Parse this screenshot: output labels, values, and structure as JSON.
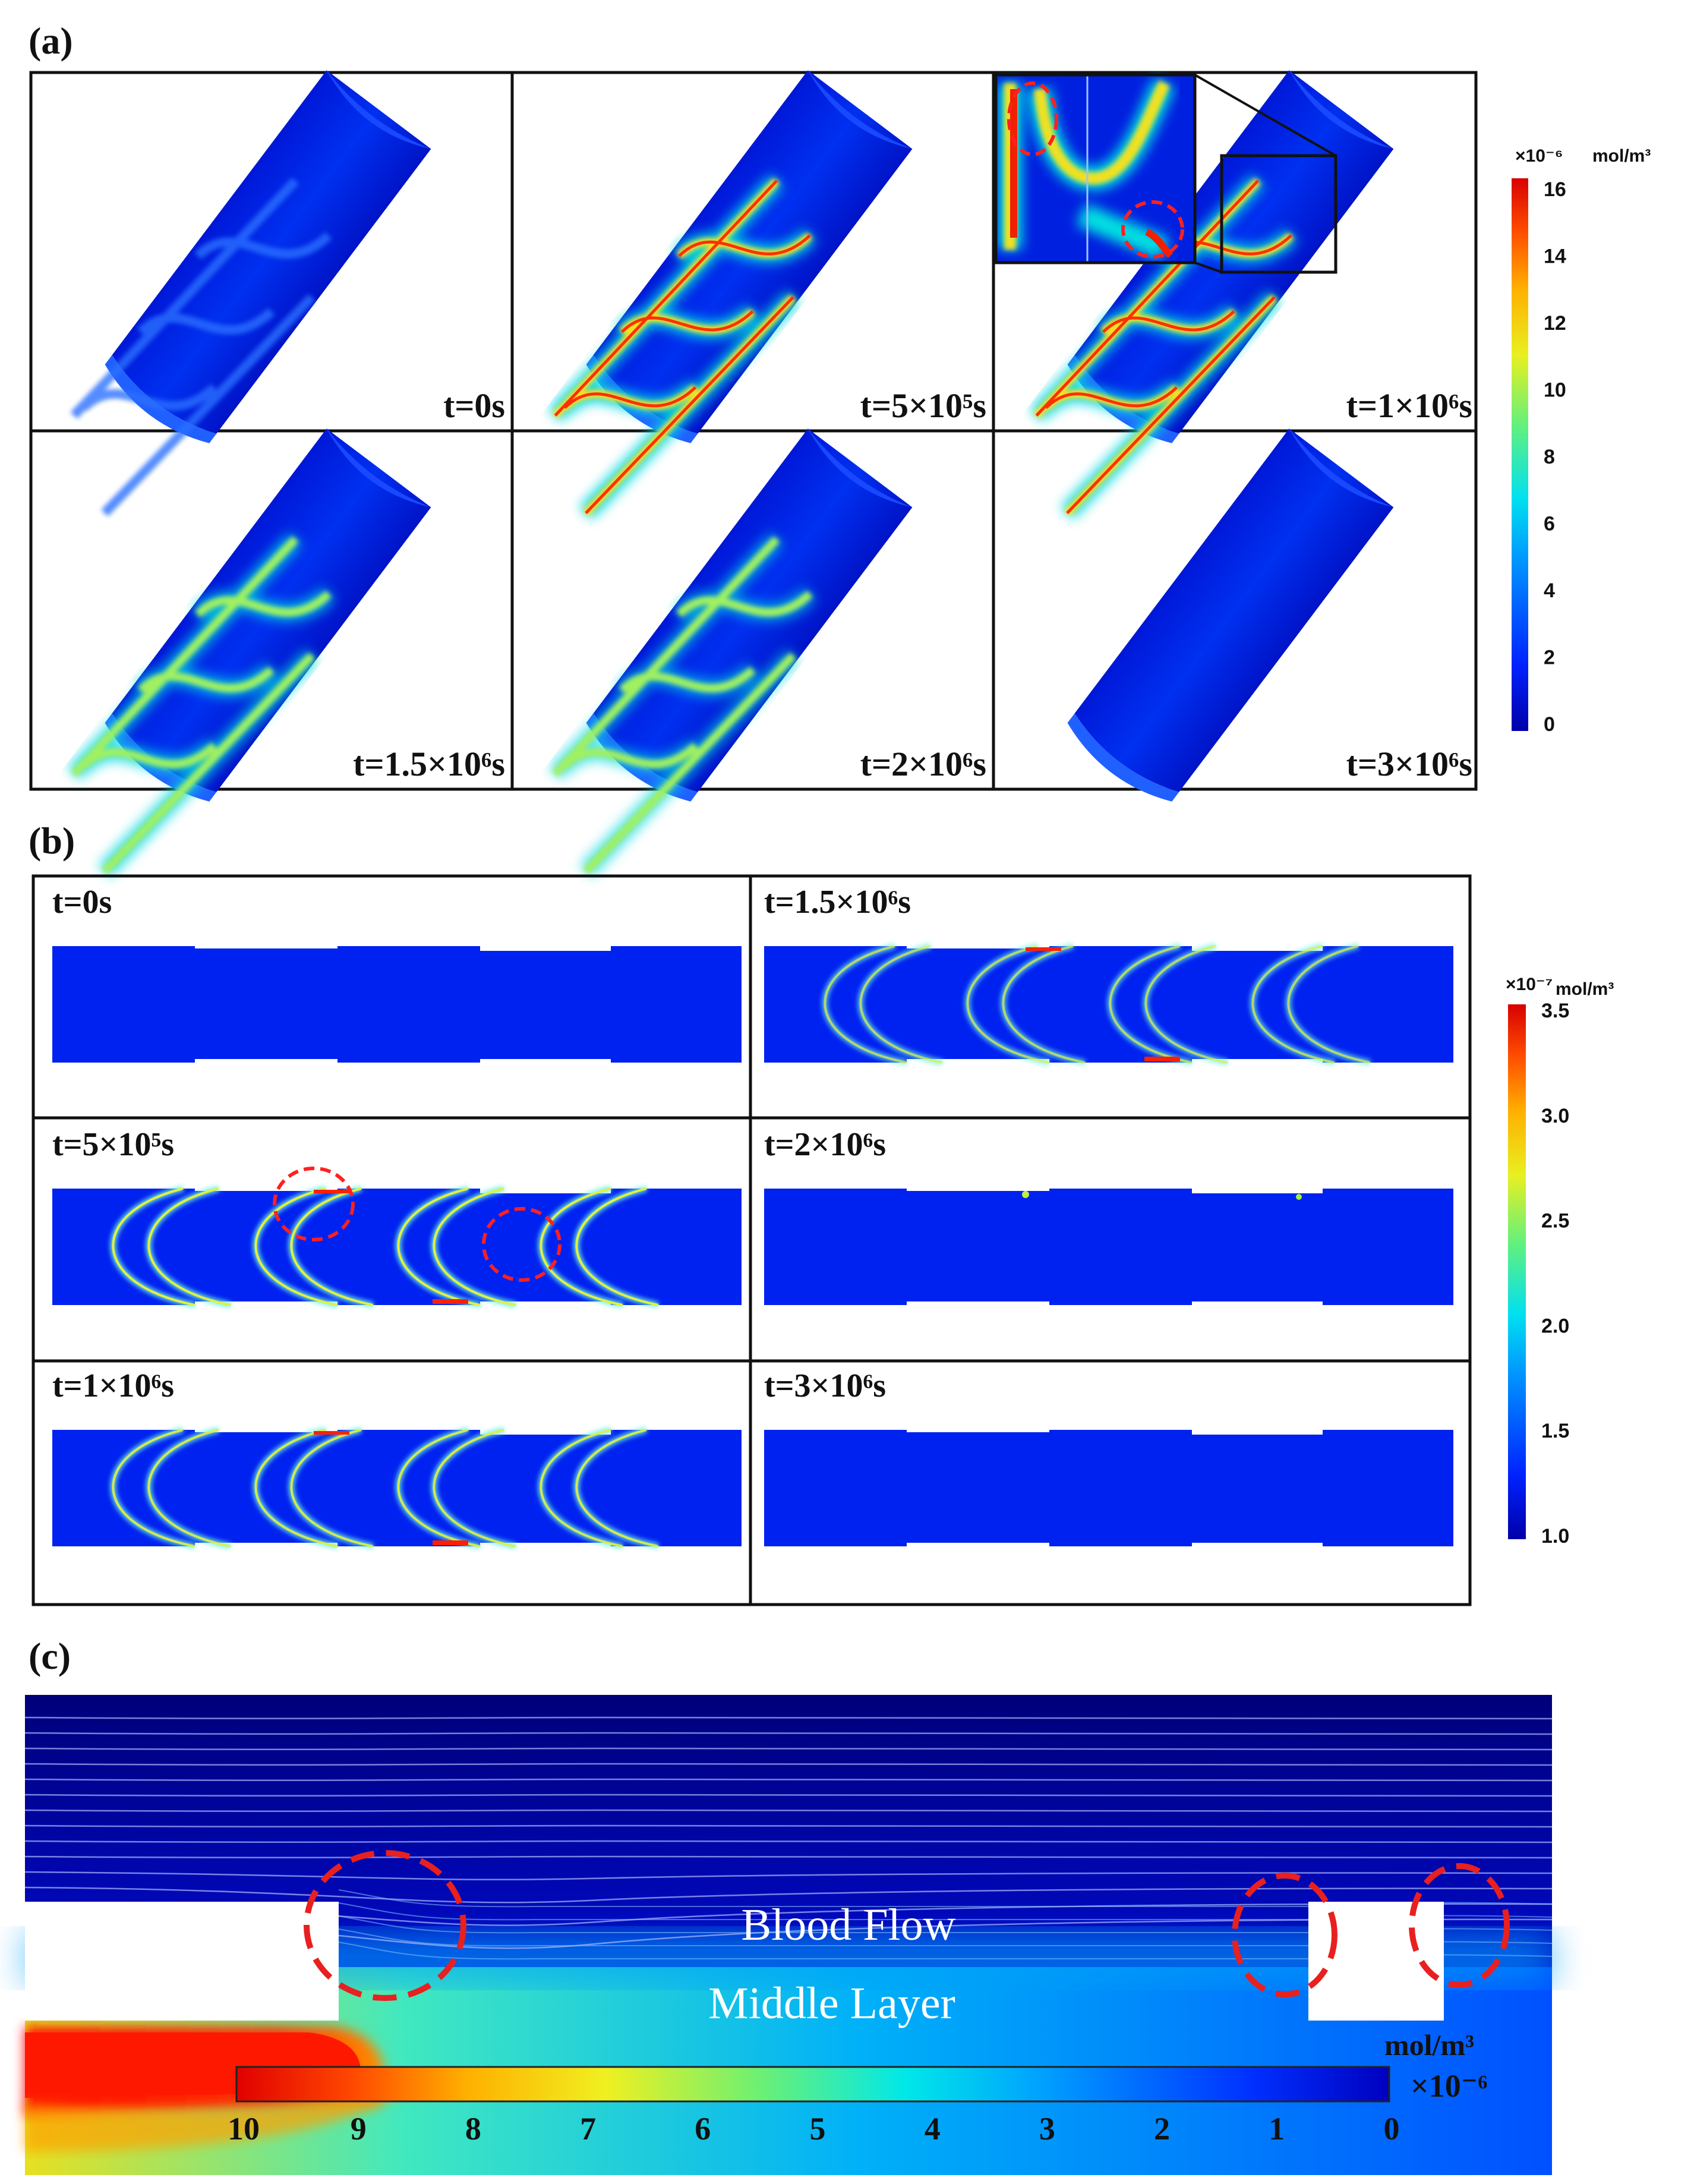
{
  "panels": {
    "a": {
      "label": "(a)",
      "times": [
        "t=0s",
        "t=5×10⁵s",
        "t=1×10⁶s",
        "t=1.5×10⁶s",
        "t=2×10⁶s",
        "t=3×10⁶s"
      ],
      "colorbar": {
        "exponent": "×10⁻⁶",
        "unit": "mol/m³",
        "ticks": [
          "16",
          "14",
          "12",
          "10",
          "8",
          "6",
          "4",
          "2",
          "0"
        ]
      }
    },
    "b": {
      "label": "(b)",
      "times_left": [
        "t=0s",
        "t=5×10⁵s",
        "t=1×10⁶s"
      ],
      "times_right": [
        "t=1.5×10⁶s",
        "t=2×10⁶s",
        "t=3×10⁶s"
      ],
      "colorbar": {
        "exponent": "×10⁻⁷",
        "unit": "mol/m³",
        "ticks": [
          "3.5",
          "3.0",
          "2.5",
          "2.0",
          "1.5",
          "1.0"
        ]
      }
    },
    "c": {
      "label": "(c)",
      "blood_flow": "Blood  Flow",
      "middle_layer": "Middle Layer",
      "colorbar": {
        "unit": "mol/m³",
        "exponent": "×10⁻⁶",
        "ticks": [
          "10",
          "9",
          "8",
          "7",
          "6",
          "5",
          "4",
          "3",
          "2",
          "1",
          "0"
        ]
      }
    }
  }
}
